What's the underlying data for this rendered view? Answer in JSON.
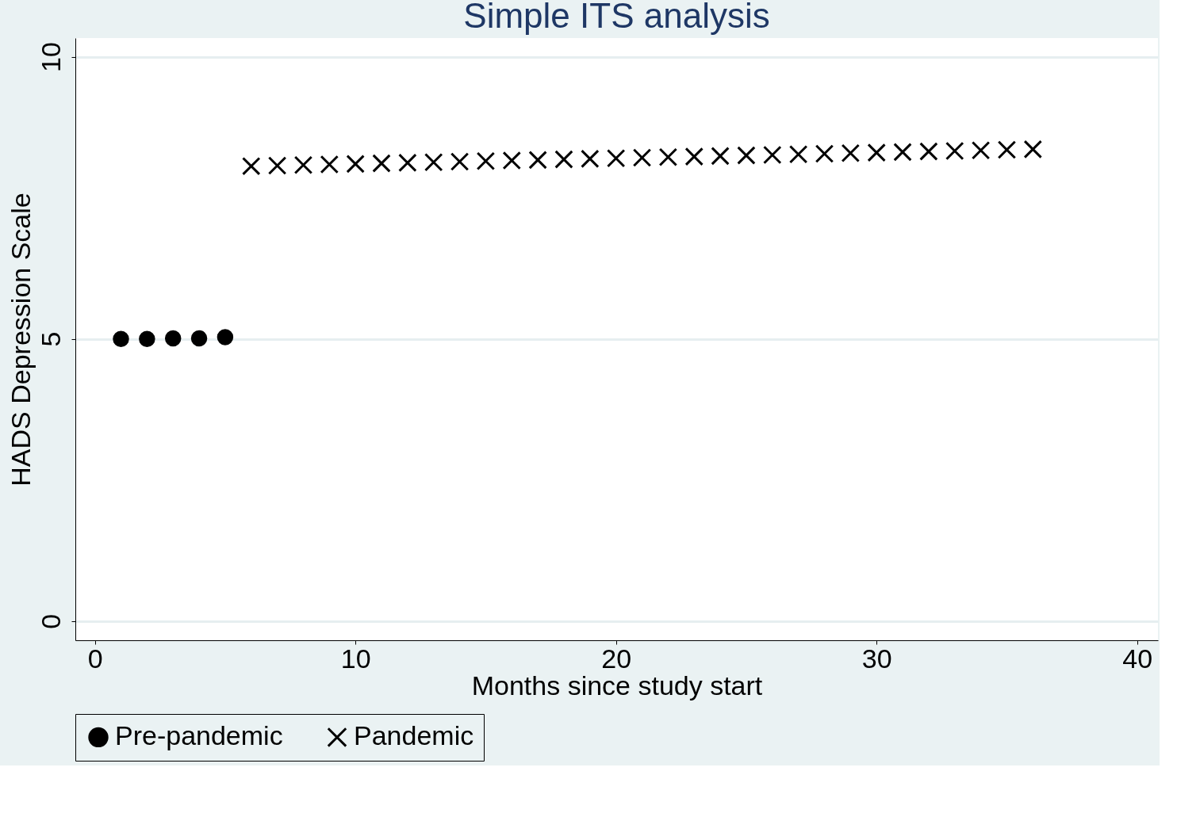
{
  "chart_data": {
    "type": "scatter",
    "title": "Simple ITS analysis",
    "xlabel": "Months since study start",
    "ylabel": "HADS Depression Scale",
    "xlim": [
      -0.75,
      40.8
    ],
    "ylim": [
      -0.34,
      10.33
    ],
    "xticks": [
      0,
      10,
      20,
      30,
      40
    ],
    "yticks": [
      0,
      5,
      10
    ],
    "grid": "y",
    "legend": "bottom",
    "series": [
      {
        "name": "Pre-pandemic",
        "color": "#000000",
        "marker": "circle",
        "x": [
          1,
          2,
          3,
          4,
          5
        ],
        "values": [
          5.0,
          5.0,
          5.01,
          5.01,
          5.03
        ]
      },
      {
        "name": "Pandemic",
        "color": "#000000",
        "marker": "cross",
        "x": [
          6,
          7,
          8,
          9,
          10,
          11,
          12,
          13,
          14,
          15,
          16,
          17,
          18,
          19,
          20,
          21,
          22,
          23,
          24,
          25,
          26,
          27,
          28,
          29,
          30,
          31,
          32,
          33,
          34,
          35,
          36
        ],
        "values": [
          8.06,
          8.07,
          8.08,
          8.09,
          8.1,
          8.11,
          8.12,
          8.13,
          8.14,
          8.15,
          8.16,
          8.17,
          8.18,
          8.19,
          8.2,
          8.21,
          8.22,
          8.23,
          8.24,
          8.25,
          8.26,
          8.27,
          8.28,
          8.29,
          8.3,
          8.31,
          8.32,
          8.33,
          8.34,
          8.35,
          8.36
        ]
      }
    ]
  }
}
